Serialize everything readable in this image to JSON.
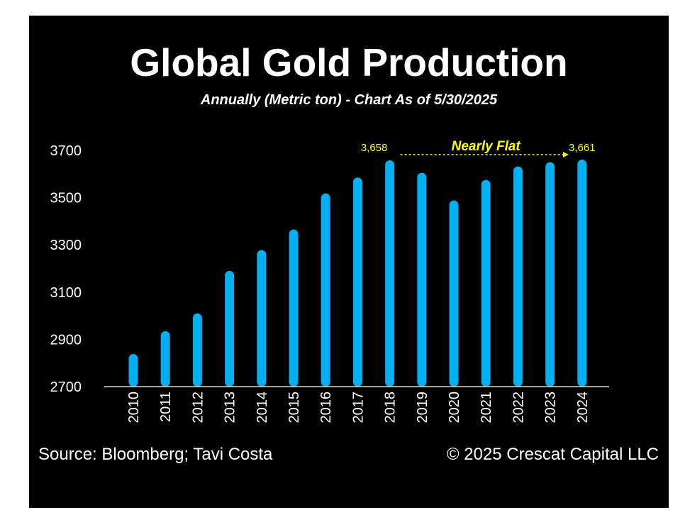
{
  "chart_data": {
    "type": "bar",
    "title": "Global Gold Production",
    "subtitle": "Annually (Metric ton) - Chart As of 5/30/2025",
    "categories": [
      "2010",
      "2011",
      "2012",
      "2013",
      "2014",
      "2015",
      "2016",
      "2017",
      "2018",
      "2019",
      "2020",
      "2021",
      "2022",
      "2023",
      "2024"
    ],
    "values": [
      2838,
      2935,
      3010,
      3190,
      3278,
      3365,
      3518,
      3585,
      3658,
      3605,
      3488,
      3575,
      3632,
      3650,
      3661
    ],
    "ylim": [
      2700,
      3700
    ],
    "yticks": [
      2700,
      2900,
      3100,
      3300,
      3500,
      3700
    ],
    "xlabel": "",
    "ylabel": "",
    "bar_color": "#00b0f0",
    "annotation": {
      "text": "Nearly Flat",
      "start_label": "3,658",
      "end_label": "3,661",
      "start_category": "2018",
      "end_category": "2024",
      "color": "#ffff00"
    }
  },
  "footer": {
    "source": "Source: Bloomberg; Tavi Costa",
    "copyright": "© 2025 Crescat Capital LLC"
  },
  "colors": {
    "background": "#000000",
    "text": "#ffffff",
    "axis": "#d9d9d9"
  }
}
